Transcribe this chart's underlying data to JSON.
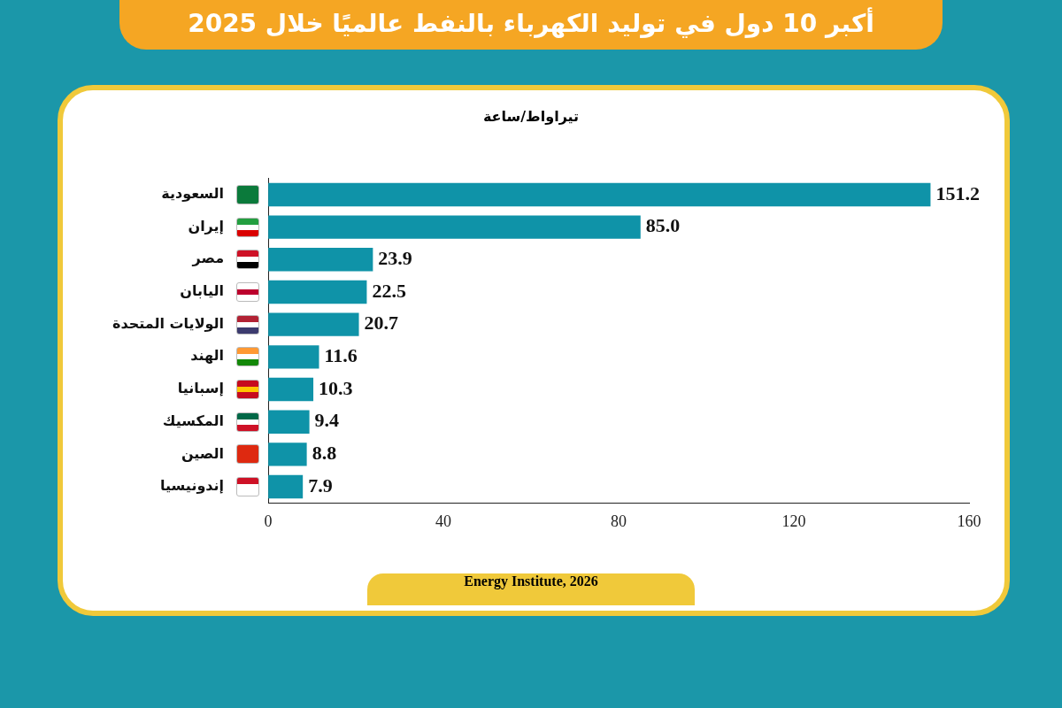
{
  "chart_data": {
    "type": "bar",
    "orientation": "horizontal",
    "title": "أكبر 10 دول في توليد الكهرباء بالنفط عالميًا خلال 2025",
    "subtitle": "تيراواط/ساعة",
    "categories": [
      "السعودية",
      "إيران",
      "مصر",
      "اليابان",
      "الولايات المتحدة",
      "الهند",
      "إسبانيا",
      "المكسيك",
      "الصين",
      "إندونيسيا"
    ],
    "values": [
      151.2,
      85.0,
      23.9,
      22.5,
      20.7,
      11.6,
      10.3,
      9.4,
      8.8,
      7.9
    ],
    "value_labels": [
      "151.2",
      "85.0",
      "23.9",
      "22.5",
      "20.7",
      "11.6",
      "10.3",
      "9.4",
      "8.8",
      "7.9"
    ],
    "color": "#0f93a8",
    "xlim": [
      0,
      160
    ],
    "xticks": [
      0,
      40,
      80,
      120,
      160
    ],
    "grid": false,
    "legend": false,
    "annotations": [
      "Energy Institute, 2026"
    ]
  }
}
